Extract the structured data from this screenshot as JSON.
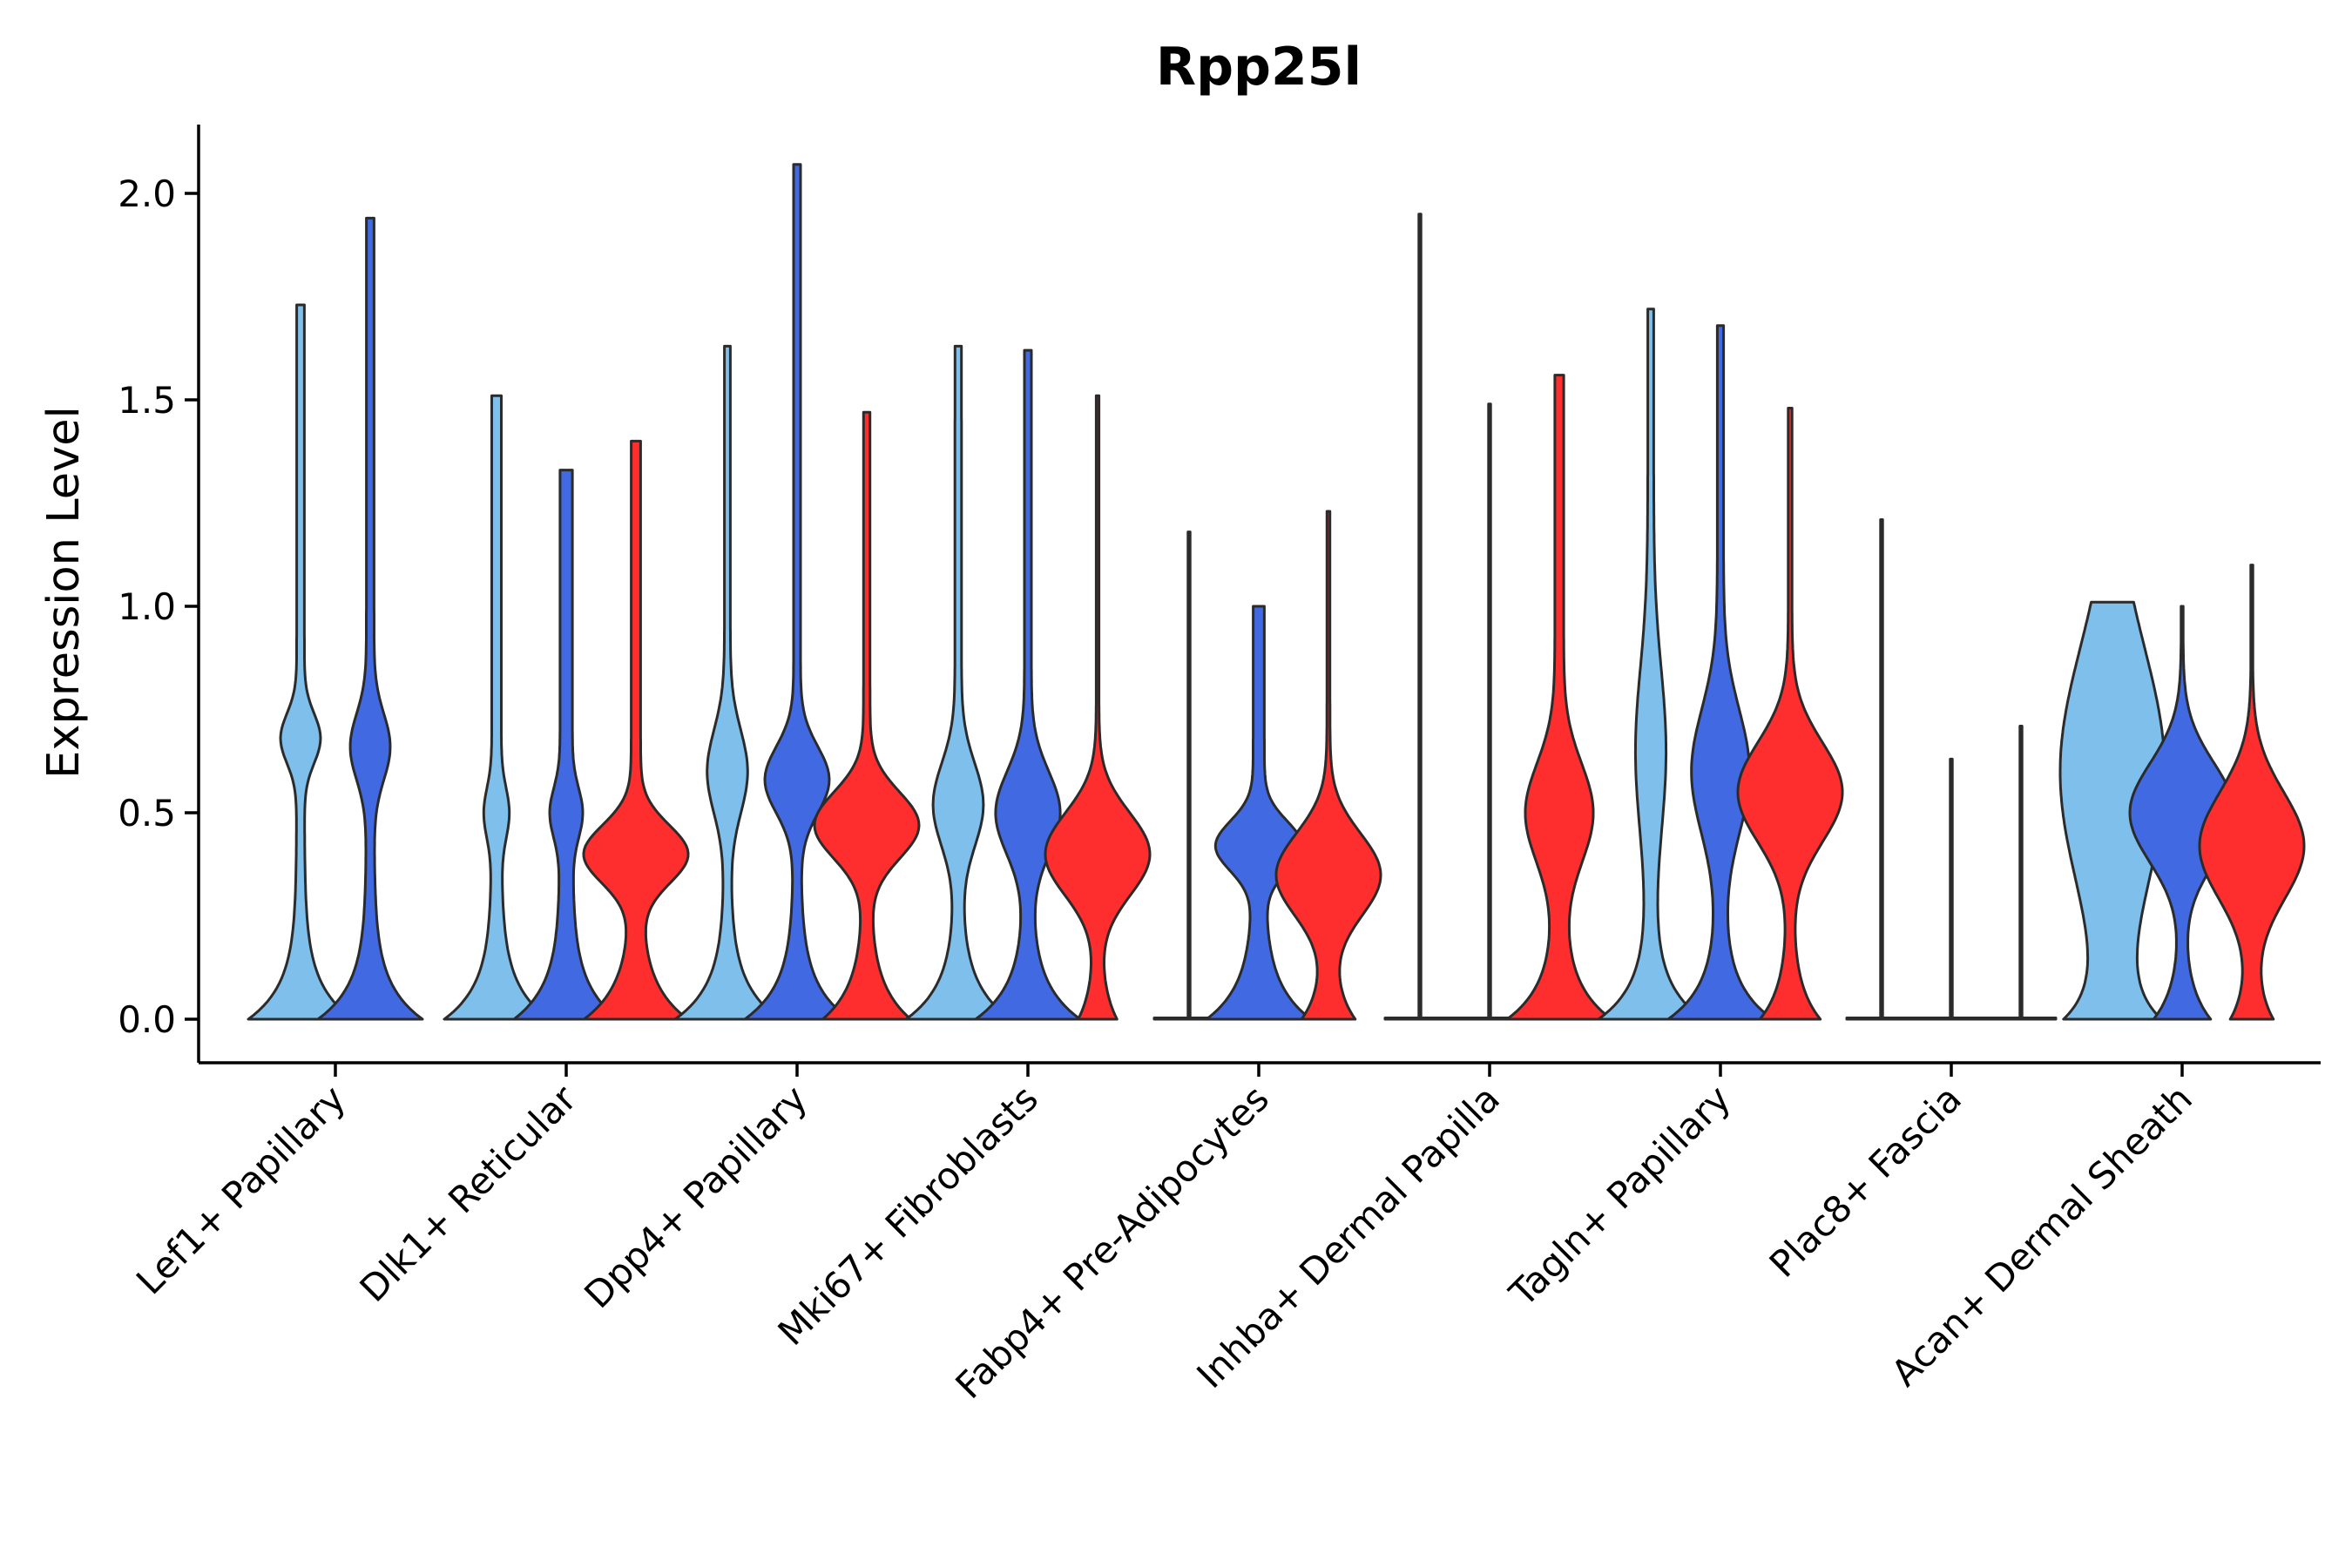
{
  "chart_data": {
    "type": "violin",
    "title": "Rpp25l",
    "xlabel": "",
    "ylabel": "Expression Level",
    "ylim": [
      -0.1,
      2.17
    ],
    "yticks": [
      0.0,
      0.5,
      1.0,
      1.5,
      2.0
    ],
    "ytick_labels": [
      "0.0",
      "0.5",
      "1.0",
      "1.5",
      "2.0"
    ],
    "grid": false,
    "legend": "none",
    "series_colors": [
      "#7FBFEB",
      "#4169E1",
      "#FF2E2E"
    ],
    "categories": [
      "Lef1+ Papillary",
      "Dlk1+ Reticular",
      "Dpp4+ Papillary",
      "Mki67+ Fibroblasts",
      "Fabp4+ Pre-Adipocytes",
      "Inhba+ Dermal Papilla",
      "Tagln+ Papillary",
      "Plac8+ Fascia",
      "Acan+ Dermal Sheath"
    ],
    "groups": [
      {
        "category": "Lef1+ Papillary",
        "violins": [
          {
            "color": "#7FBFEB",
            "max": 1.73,
            "base": 0.15,
            "peaks": [
              [
                0.68,
                0.06,
                0.05
              ]
            ]
          },
          {
            "color": "#4169E1",
            "max": 1.94,
            "base": 0.15,
            "peaks": [
              [
                0.66,
                0.08,
                0.05
              ]
            ]
          }
        ]
      },
      {
        "category": "Dlk1+ Reticular",
        "violins": [
          {
            "color": "#7FBFEB",
            "max": 1.51,
            "base": 0.12,
            "peaks": [
              [
                0.5,
                0.06,
                0.02
              ]
            ]
          },
          {
            "color": "#4169E1",
            "max": 1.33,
            "base": 0.09,
            "peaks": [
              [
                0.5,
                0.06,
                0.02
              ]
            ]
          },
          {
            "color": "#FF2E2E",
            "max": 1.4,
            "base": 0.12,
            "peaks": [
              [
                0.4,
                0.07,
                0.12
              ]
            ]
          }
        ]
      },
      {
        "category": "Dpp4+ Papillary",
        "violins": [
          {
            "color": "#7FBFEB",
            "max": 1.63,
            "base": 0.2,
            "peaks": [
              [
                0.6,
                0.1,
                0.07
              ]
            ]
          },
          {
            "color": "#4169E1",
            "max": 2.07,
            "base": 0.17,
            "peaks": [
              [
                0.58,
                0.08,
                0.1
              ]
            ]
          },
          {
            "color": "#FF2E2E",
            "max": 1.47,
            "base": 0.15,
            "peaks": [
              [
                0.47,
                0.08,
                0.18
              ]
            ]
          }
        ]
      },
      {
        "category": "Mki67+ Fibroblasts",
        "violins": [
          {
            "color": "#7FBFEB",
            "max": 1.63,
            "base": 0.18,
            "peaks": [
              [
                0.52,
                0.1,
                0.08
              ]
            ]
          },
          {
            "color": "#4169E1",
            "max": 1.62,
            "base": 0.17,
            "peaks": [
              [
                0.5,
                0.1,
                0.1
              ]
            ]
          },
          {
            "color": "#FF2E2E",
            "max": 1.51,
            "base": 0.16,
            "peaks": [
              [
                0.4,
                0.1,
                0.45
              ]
            ]
          }
        ]
      },
      {
        "category": "Fabp4+ Pre-Adipocytes",
        "violins": [
          {
            "color": "#7FBFEB",
            "max": 1.18,
            "base": 0.0,
            "peaks": []
          },
          {
            "color": "#4169E1",
            "max": 1.0,
            "base": 0.1,
            "peaks": [
              [
                0.42,
                0.06,
                0.08
              ]
            ]
          },
          {
            "color": "#FF2E2E",
            "max": 1.23,
            "base": 0.2,
            "peaks": [
              [
                0.35,
                0.1,
                0.4
              ]
            ]
          }
        ]
      },
      {
        "category": "Inhba+ Dermal Papilla",
        "violins": [
          {
            "color": "#7FBFEB",
            "max": 1.95,
            "base": 0.0,
            "peaks": []
          },
          {
            "color": "#4169E1",
            "max": 1.49,
            "base": 0.0,
            "peaks": []
          },
          {
            "color": "#FF2E2E",
            "max": 1.56,
            "base": 0.13,
            "peaks": [
              [
                0.5,
                0.12,
                0.08
              ]
            ]
          }
        ]
      },
      {
        "category": "Tagln+ Papillary",
        "violins": [
          {
            "color": "#7FBFEB",
            "max": 1.72,
            "base": 0.2,
            "peaks": [
              [
                0.65,
                0.2,
                0.05
              ]
            ]
          },
          {
            "color": "#4169E1",
            "max": 1.68,
            "base": 0.19,
            "peaks": [
              [
                0.6,
                0.15,
                0.1
              ]
            ]
          },
          {
            "color": "#FF2E2E",
            "max": 1.48,
            "base": 0.18,
            "peaks": [
              [
                0.55,
                0.12,
                0.32
              ]
            ]
          }
        ]
      },
      {
        "category": "Plac8+ Fascia",
        "violins": [
          {
            "color": "#7FBFEB",
            "max": 1.21,
            "base": 0.0,
            "peaks": []
          },
          {
            "color": "#4169E1",
            "max": 0.63,
            "base": 0.0,
            "peaks": []
          },
          {
            "color": "#FF2E2E",
            "max": 0.71,
            "base": 0.0,
            "peaks": []
          }
        ]
      },
      {
        "category": "Acan+ Dermal Sheath",
        "violins": [
          {
            "color": "#7FBFEB",
            "max": 1.01,
            "base": 0.4,
            "peaks": [
              [
                0.6,
                0.3,
                0.5
              ]
            ]
          },
          {
            "color": "#4169E1",
            "max": 1.0,
            "base": 0.35,
            "peaks": [
              [
                0.5,
                0.12,
                0.65
              ]
            ]
          },
          {
            "color": "#FF2E2E",
            "max": 1.1,
            "base": 0.3,
            "peaks": [
              [
                0.42,
                0.13,
                0.75
              ]
            ]
          }
        ]
      }
    ]
  }
}
